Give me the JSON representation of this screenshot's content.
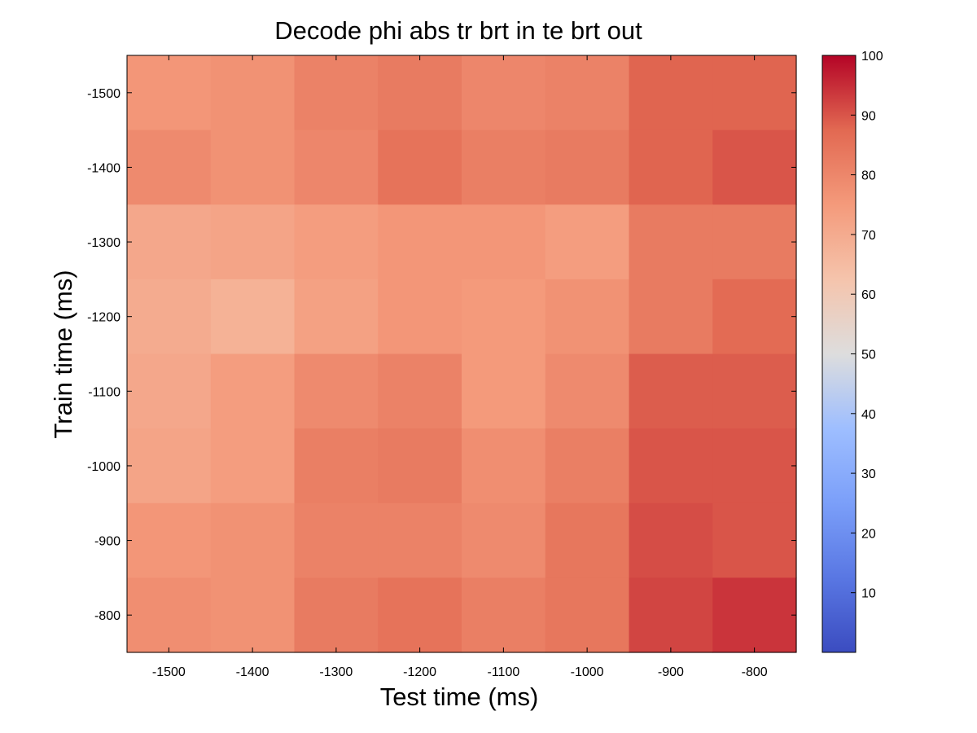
{
  "chart_data": {
    "type": "heatmap",
    "title": "Decode phi abs tr brt in te brt out",
    "xlabel": "Test time (ms)",
    "ylabel": "Train time (ms)",
    "x": [
      -1500,
      -1400,
      -1300,
      -1200,
      -1100,
      -1000,
      -900,
      -800
    ],
    "y": [
      -1500,
      -1400,
      -1300,
      -1200,
      -1100,
      -1000,
      -900,
      -800
    ],
    "xticks": [
      "-1500",
      "-1400",
      "-1300",
      "-1200",
      "-1100",
      "-1000",
      "-900",
      "-800"
    ],
    "yticks": [
      "-1500",
      "-1400",
      "-1300",
      "-1200",
      "-1100",
      "-1000",
      "-900",
      "-800"
    ],
    "values": [
      [
        76,
        77,
        81,
        83,
        80,
        81,
        88,
        88
      ],
      [
        79,
        77,
        80,
        85,
        82,
        83,
        88,
        90
      ],
      [
        71,
        72,
        74,
        76,
        76,
        74,
        83,
        83
      ],
      [
        70,
        68,
        73,
        76,
        75,
        77,
        83,
        87
      ],
      [
        71,
        74,
        79,
        81,
        75,
        79,
        89,
        89
      ],
      [
        72,
        74,
        82,
        83,
        78,
        82,
        90,
        90
      ],
      [
        76,
        77,
        81,
        81,
        79,
        84,
        91,
        90
      ],
      [
        78,
        77,
        83,
        85,
        82,
        84,
        92,
        94
      ]
    ],
    "colorbar": {
      "min": 0,
      "max": 100,
      "ticks": [
        "10",
        "20",
        "30",
        "40",
        "50",
        "60",
        "70",
        "80",
        "90",
        "100"
      ],
      "colormap": "coolwarm",
      "low_color": "#3b4cc0",
      "mid_color": "#dddddd",
      "high_color": "#b40426"
    },
    "grid": false
  }
}
